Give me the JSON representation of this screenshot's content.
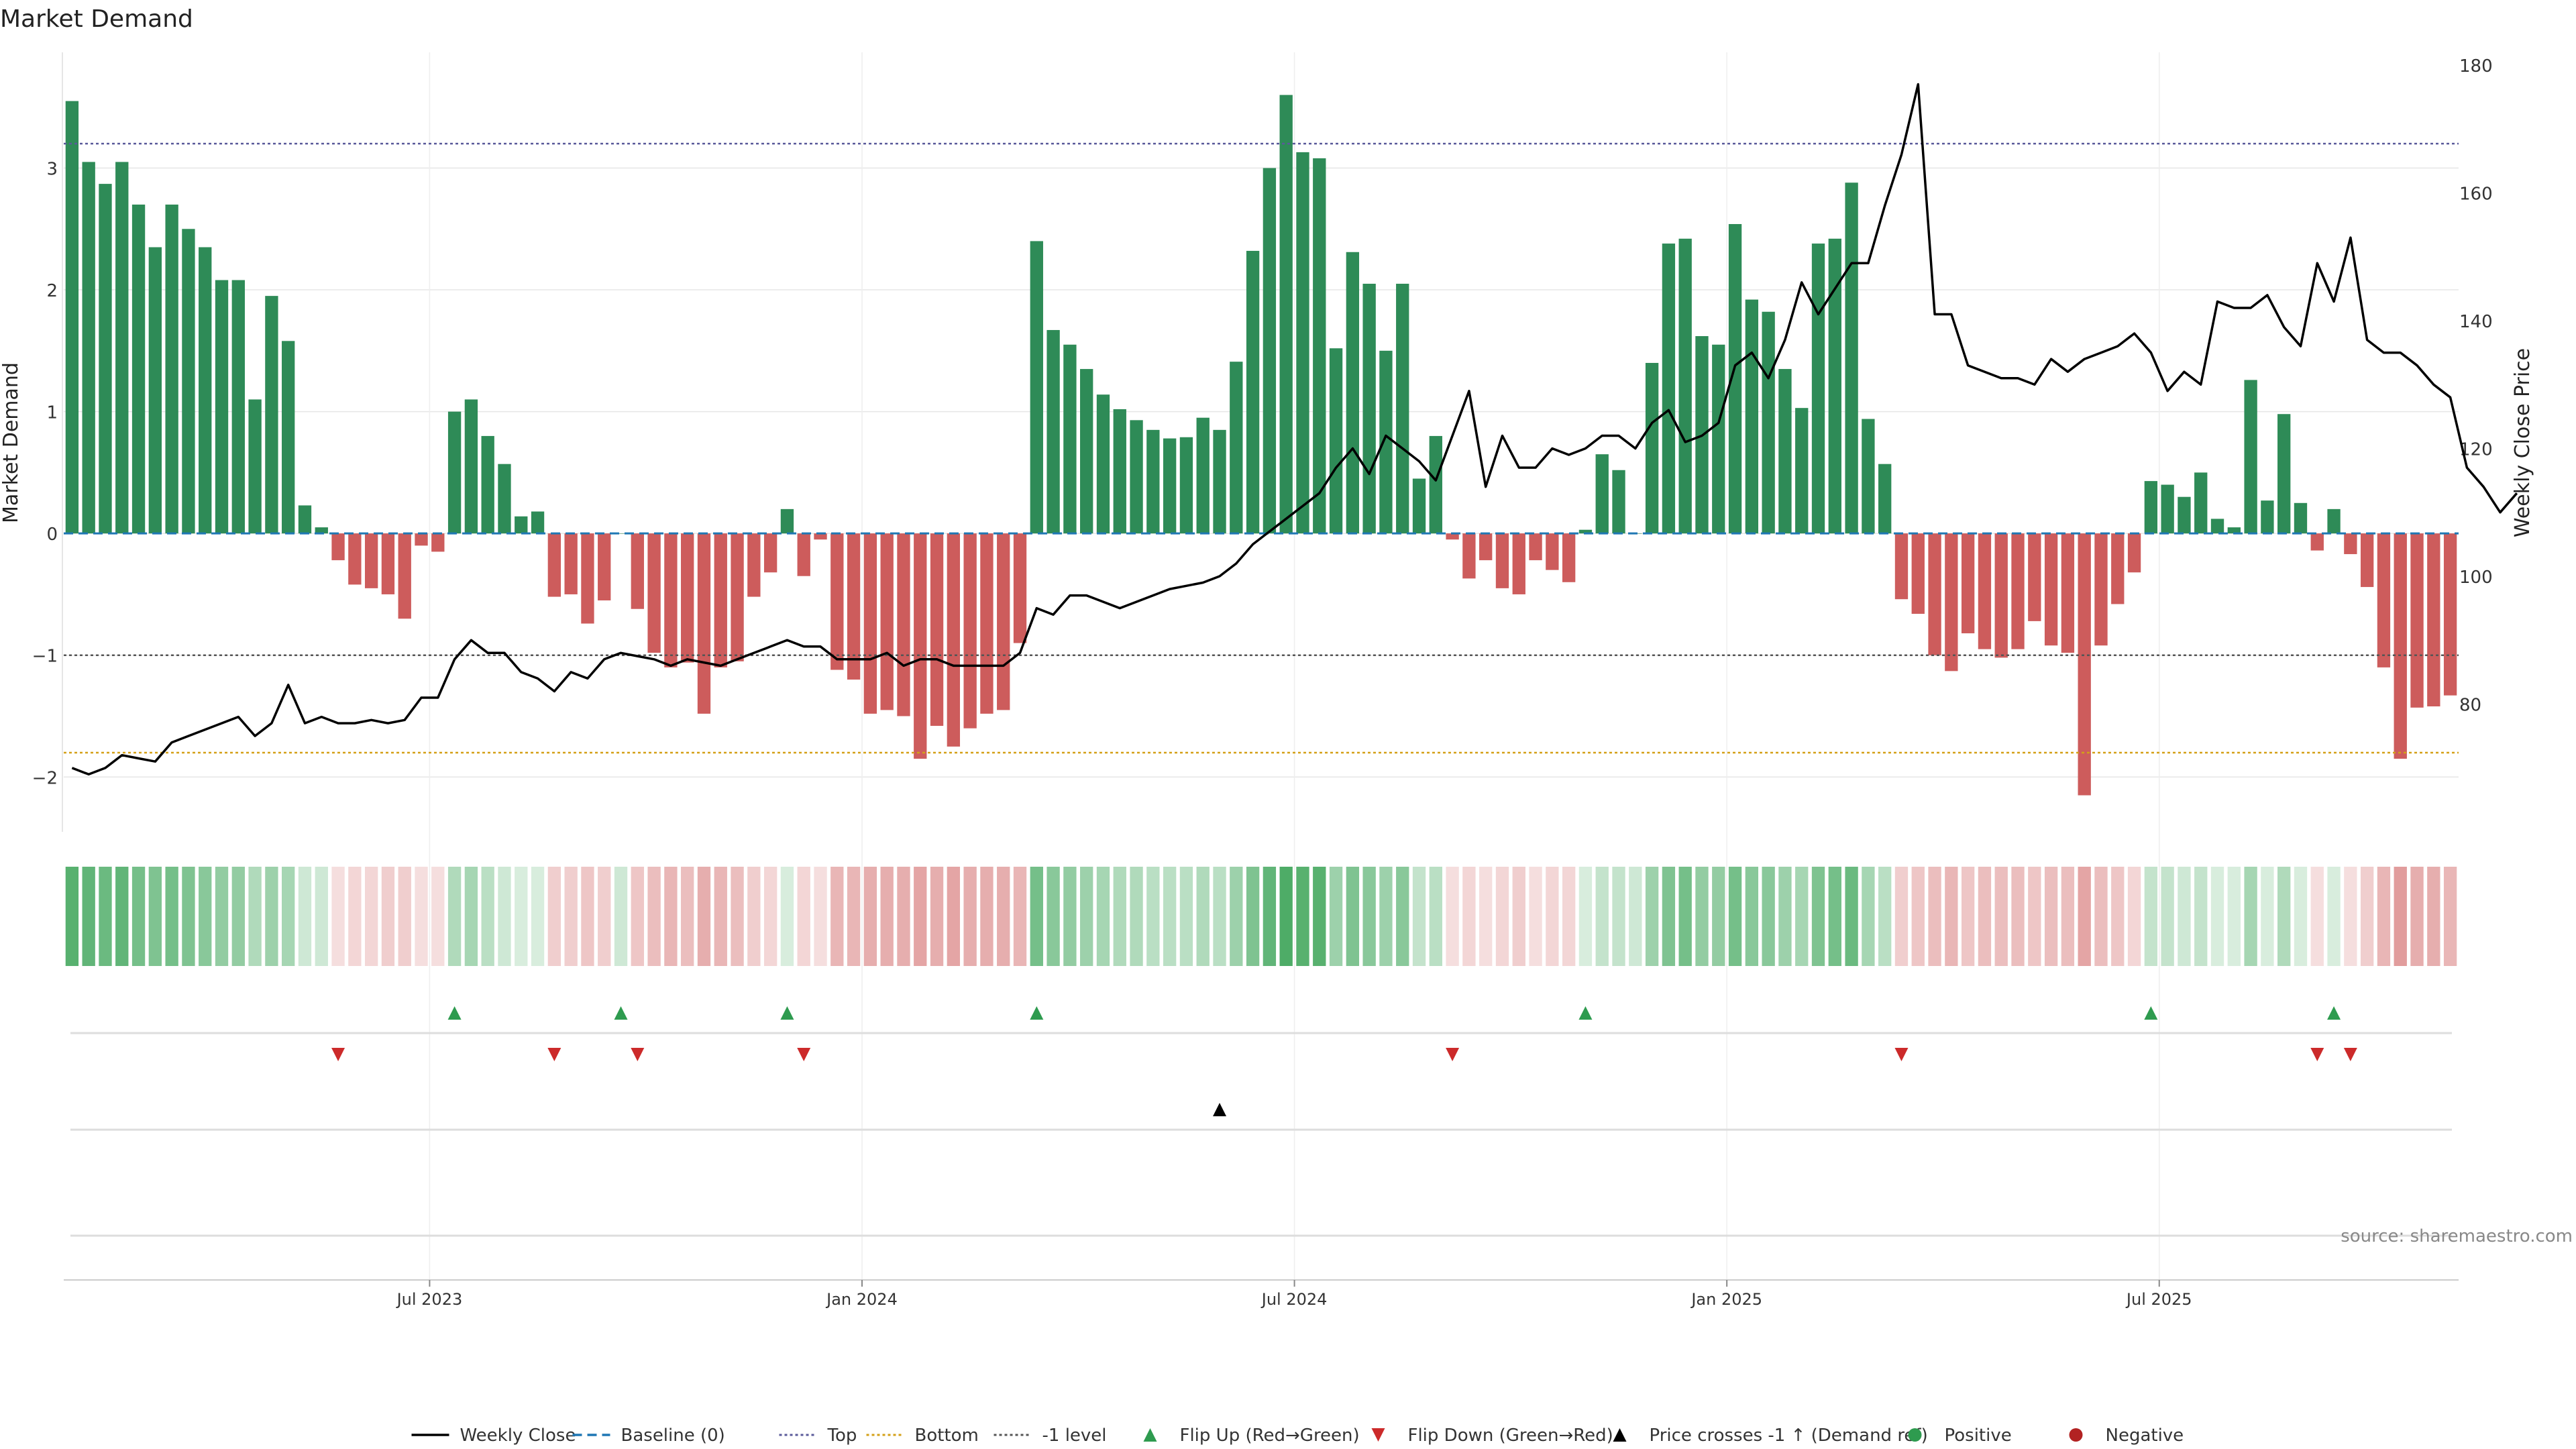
{
  "chart_data": {
    "type": "bar",
    "title": "Market Demand",
    "ylabel_left": "Market Demand",
    "ylabel_right": "Weekly Close Price",
    "source": "source: sharemaestro.com",
    "x_ticks": [
      "Jul 2023",
      "Jan 2024",
      "Jul 2024",
      "Jan 2025",
      "Jul 2025"
    ],
    "x_tick_weeks": [
      22,
      48,
      74,
      100,
      126
    ],
    "ylim_left": [
      -2.45,
      3.95
    ],
    "yticks_left": [
      -2,
      -1,
      0,
      1,
      2,
      3
    ],
    "ylim_right": [
      60,
      182
    ],
    "yticks_right": [
      80,
      100,
      120,
      140,
      160,
      180
    ],
    "levels": {
      "top": 3.2,
      "bottom": -1.8,
      "minus_one": -1
    },
    "demand": [
      3.55,
      3.05,
      2.87,
      3.05,
      2.7,
      2.35,
      2.7,
      2.5,
      2.35,
      2.08,
      2.08,
      1.1,
      1.95,
      1.58,
      0.23,
      0.05,
      -0.22,
      -0.42,
      -0.45,
      -0.5,
      -0.7,
      -0.1,
      -0.15,
      1.0,
      1.1,
      0.8,
      0.57,
      0.14,
      0.18,
      -0.52,
      -0.5,
      -0.74,
      -0.55,
      0.0,
      -0.62,
      -0.98,
      -1.1,
      -1.06,
      -1.48,
      -1.1,
      -1.05,
      -0.52,
      -0.32,
      0.2,
      -0.35,
      -0.05,
      -1.12,
      -1.2,
      -1.48,
      -1.45,
      -1.5,
      -1.85,
      -1.58,
      -1.75,
      -1.6,
      -1.48,
      -1.45,
      -0.9,
      2.4,
      1.67,
      1.55,
      1.35,
      1.14,
      1.02,
      0.93,
      0.85,
      0.78,
      0.79,
      0.95,
      0.85,
      1.41,
      2.32,
      3.0,
      3.6,
      3.13,
      3.08,
      1.52,
      2.31,
      2.05,
      1.5,
      2.05,
      0.45,
      0.8,
      -0.05,
      -0.37,
      -0.22,
      -0.45,
      -0.5,
      -0.22,
      -0.3,
      -0.4,
      0.03,
      0.65,
      0.52,
      0.0,
      1.4,
      2.38,
      2.42,
      1.62,
      1.55,
      2.54,
      1.92,
      1.82,
      1.35,
      1.03,
      2.38,
      2.42,
      2.88,
      0.94,
      0.57,
      -0.54,
      -0.66,
      -1.0,
      -1.13,
      -0.82,
      -0.95,
      -1.02,
      -0.95,
      -0.72,
      -0.92,
      -0.98,
      -2.15,
      -0.92,
      -0.58,
      -0.32,
      0.43,
      0.4,
      0.3,
      0.5,
      0.12,
      0.05,
      1.26,
      0.27,
      0.98,
      0.25,
      -0.14,
      0.2,
      -0.17,
      -0.44,
      -1.1,
      -1.85,
      -1.43,
      -1.42,
      -1.33
    ],
    "weekly_close": [
      70,
      69,
      70,
      72,
      71.5,
      71,
      74,
      75,
      76,
      77,
      78,
      75,
      77,
      83,
      77,
      78,
      77,
      77,
      77.5,
      77,
      77.5,
      81,
      81,
      87,
      90,
      88,
      88,
      85,
      84,
      82,
      85,
      84,
      87,
      88,
      87.5,
      87,
      86,
      87,
      86.5,
      86,
      87,
      88,
      89,
      90,
      89,
      89,
      87,
      87,
      87,
      88,
      86,
      87,
      87,
      86,
      86,
      86,
      86,
      88,
      95,
      94,
      97,
      97,
      96,
      95,
      96,
      97,
      98,
      98.5,
      99,
      100,
      102,
      105,
      107,
      109,
      111,
      113,
      117,
      120,
      116,
      122,
      120,
      118,
      115,
      122,
      129,
      114,
      122,
      117,
      117,
      120,
      119,
      120,
      122,
      122,
      120,
      124,
      126,
      121,
      122,
      124,
      133,
      135,
      131,
      137,
      146,
      141,
      145,
      149,
      149,
      158,
      166,
      177,
      141,
      141,
      133,
      132,
      131,
      131,
      130,
      134,
      132,
      134,
      135,
      136,
      138,
      135,
      129,
      132,
      130,
      143,
      142,
      142,
      144,
      139,
      136,
      149,
      143,
      153,
      137,
      135,
      135,
      133,
      130,
      128,
      117,
      114,
      110,
      113
    ],
    "momentum_strip": [
      0.85,
      0.8,
      0.75,
      0.8,
      0.7,
      0.65,
      0.7,
      0.65,
      0.6,
      0.55,
      0.55,
      0.4,
      0.5,
      0.45,
      0.25,
      0.25,
      -0.2,
      -0.25,
      -0.25,
      -0.3,
      -0.3,
      -0.2,
      -0.2,
      0.4,
      0.45,
      0.35,
      0.25,
      0.2,
      0.2,
      -0.3,
      -0.3,
      -0.35,
      -0.3,
      0.25,
      -0.35,
      -0.4,
      -0.45,
      -0.4,
      -0.5,
      -0.45,
      -0.4,
      -0.3,
      -0.25,
      0.2,
      -0.25,
      -0.2,
      -0.45,
      -0.45,
      -0.5,
      -0.5,
      -0.5,
      -0.55,
      -0.5,
      -0.55,
      -0.5,
      -0.5,
      -0.5,
      -0.45,
      0.7,
      0.6,
      0.55,
      0.5,
      0.45,
      0.4,
      0.4,
      0.35,
      0.35,
      0.35,
      0.4,
      0.35,
      0.5,
      0.65,
      0.8,
      0.9,
      0.85,
      0.85,
      0.5,
      0.65,
      0.6,
      0.5,
      0.6,
      0.3,
      0.35,
      -0.2,
      -0.25,
      -0.2,
      -0.25,
      -0.3,
      -0.2,
      -0.25,
      -0.25,
      0.2,
      0.3,
      0.3,
      0.25,
      0.5,
      0.65,
      0.7,
      0.55,
      0.55,
      0.7,
      0.6,
      0.6,
      0.5,
      0.45,
      0.65,
      0.7,
      0.75,
      0.45,
      0.35,
      -0.3,
      -0.35,
      -0.4,
      -0.45,
      -0.35,
      -0.4,
      -0.4,
      -0.4,
      -0.35,
      -0.4,
      -0.4,
      -0.55,
      -0.4,
      -0.35,
      -0.25,
      0.3,
      0.3,
      0.25,
      0.3,
      0.2,
      0.2,
      0.45,
      0.2,
      0.4,
      0.2,
      -0.2,
      0.2,
      -0.2,
      -0.3,
      -0.45,
      -0.6,
      -0.5,
      -0.5,
      -0.45
    ],
    "flip_up_weeks": [
      23,
      33,
      43,
      58,
      91,
      125,
      136
    ],
    "flip_down_weeks": [
      16,
      29,
      34,
      44,
      83,
      110,
      135,
      137
    ],
    "price_cross_weeks": [
      69
    ],
    "legend": [
      {
        "label": "Weekly Close",
        "kind": "line",
        "color": "#000000"
      },
      {
        "label": "Baseline (0)",
        "kind": "dash",
        "color": "#1f77b4"
      },
      {
        "label": "Top",
        "kind": "dot",
        "color": "#5a5a9a"
      },
      {
        "label": "Bottom",
        "kind": "dot",
        "color": "#d4a017"
      },
      {
        "label": "-1 level",
        "kind": "dot",
        "color": "#555555"
      },
      {
        "label": "Flip Up (Red→Green)",
        "kind": "tri-up",
        "color": "#2e9b4f"
      },
      {
        "label": "Flip Down (Green→Red)",
        "kind": "tri-down",
        "color": "#cc2a2a"
      },
      {
        "label": "Price crosses -1 ↑ (Demand ref)",
        "kind": "tri-up",
        "color": "#000000"
      },
      {
        "label": "Positive",
        "kind": "circle",
        "color": "#2e9b4f"
      },
      {
        "label": "Negative",
        "kind": "circle",
        "color": "#b22222"
      }
    ],
    "colors": {
      "positive": "#2e8b57",
      "negative": "#cd5c5c",
      "strip_positive": "#3aa356",
      "strip_negative": "#cd5c5c"
    }
  }
}
